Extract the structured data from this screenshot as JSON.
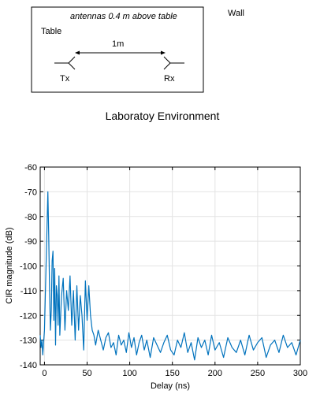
{
  "diagram": {
    "annotation": "antennas 0.4 m above table",
    "wall_label": "Wall",
    "table_label": "Table",
    "distance_label": "1m",
    "tx_label": "Tx",
    "rx_label": "Rx",
    "caption": "Laboratoy Environment"
  },
  "chart_data": {
    "type": "line",
    "title": "",
    "xlabel": "Delay (ns)",
    "ylabel": "CIR magnitude (dB)",
    "xlim": [
      -5,
      300
    ],
    "ylim": [
      -140,
      -60
    ],
    "xticks": [
      0,
      50,
      100,
      150,
      200,
      250,
      300
    ],
    "yticks": [
      -60,
      -70,
      -80,
      -90,
      -100,
      -110,
      -120,
      -130,
      -140
    ],
    "grid": true,
    "line_color": "#0072bd",
    "series": [
      {
        "x": [
          -5,
          -4,
          -3,
          -2,
          -1,
          0,
          1,
          2,
          3,
          4,
          5,
          6,
          7,
          8,
          9,
          10,
          11,
          12,
          13,
          14,
          15,
          16,
          17,
          18,
          19,
          20,
          22,
          24,
          26,
          28,
          30,
          32,
          34,
          36,
          38,
          40,
          42,
          44,
          46,
          48,
          50,
          52,
          54,
          56,
          58,
          60,
          63,
          66,
          69,
          72,
          75,
          78,
          81,
          84,
          87,
          90,
          93,
          96,
          99,
          102,
          105,
          108,
          111,
          114,
          117,
          120,
          124,
          128,
          132,
          136,
          140,
          144,
          148,
          152,
          156,
          160,
          164,
          168,
          172,
          176,
          180,
          184,
          188,
          192,
          196,
          200,
          205,
          210,
          215,
          220,
          225,
          230,
          235,
          240,
          245,
          250,
          255,
          260,
          265,
          270,
          275,
          280,
          285,
          290,
          295,
          300
        ],
        "values": [
          -128,
          -133,
          -130,
          -136,
          -131,
          -126,
          -112,
          -98,
          -84,
          -70,
          -88,
          -110,
          -126,
          -118,
          -98,
          -94,
          -122,
          -101,
          -132,
          -108,
          -112,
          -124,
          -104,
          -128,
          -120,
          -112,
          -105,
          -126,
          -110,
          -118,
          -104,
          -124,
          -110,
          -130,
          -108,
          -126,
          -112,
          -120,
          -134,
          -106,
          -122,
          -108,
          -120,
          -126,
          -128,
          -132,
          -126,
          -130,
          -134,
          -129,
          -127,
          -133,
          -131,
          -136,
          -128,
          -132,
          -130,
          -135,
          -127,
          -133,
          -129,
          -136,
          -131,
          -128,
          -134,
          -130,
          -137,
          -129,
          -132,
          -135,
          -131,
          -128,
          -134,
          -136,
          -130,
          -133,
          -127,
          -135,
          -131,
          -138,
          -129,
          -133,
          -130,
          -136,
          -128,
          -134,
          -131,
          -137,
          -129,
          -133,
          -135,
          -130,
          -136,
          -128,
          -134,
          -131,
          -129,
          -137,
          -132,
          -130,
          -135,
          -128,
          -133,
          -131,
          -136,
          -130
        ]
      }
    ]
  }
}
